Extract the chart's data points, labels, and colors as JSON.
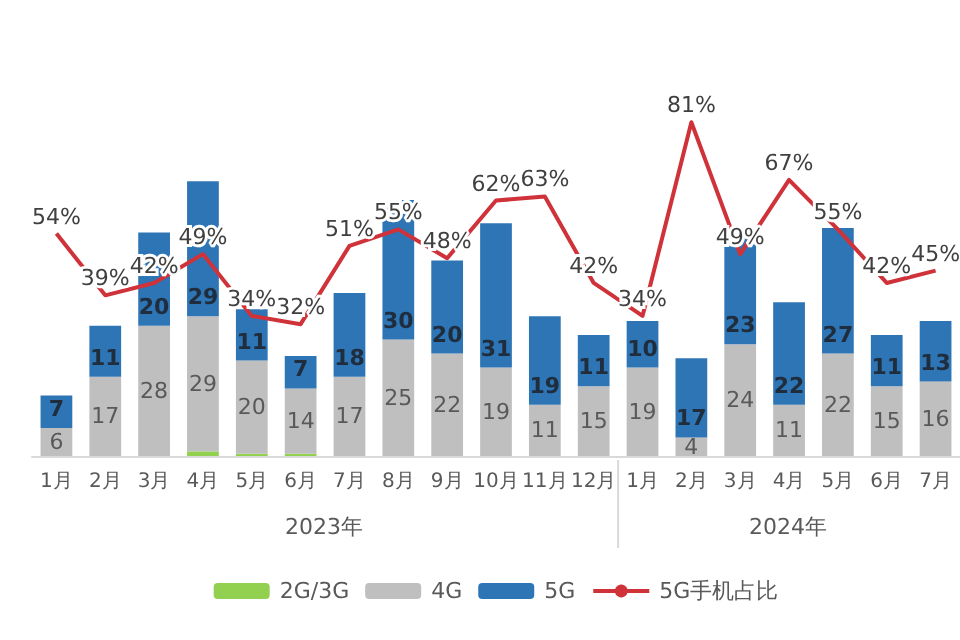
{
  "chart_data": {
    "type": "bar",
    "stacked": true,
    "data_labels": true,
    "legend": "bottom",
    "tick_labels": false,
    "categories": [
      "1月",
      "2月",
      "3月",
      "4月",
      "5月",
      "6月",
      "7月",
      "8月",
      "9月",
      "10月",
      "11月",
      "12月",
      "1月",
      "2月",
      "3月",
      "4月",
      "5月",
      "6月",
      "7月"
    ],
    "series": [
      {
        "name": "2G/3G",
        "color": "#92d050",
        "values": [
          null,
          null,
          null,
          1,
          0.5,
          0.5,
          null,
          null,
          null,
          null,
          null,
          null,
          null,
          null,
          null,
          null,
          null,
          null,
          null
        ],
        "value_labels": [
          null,
          null,
          null,
          null,
          null,
          null,
          null,
          null,
          null,
          null,
          null,
          null,
          null,
          null,
          null,
          null,
          null,
          null,
          null
        ]
      },
      {
        "name": "4G",
        "color": "#bfbfbf",
        "values": [
          6,
          17,
          28,
          29,
          20,
          14,
          17,
          25,
          22,
          19,
          11,
          15,
          19,
          4,
          24,
          11,
          22,
          15,
          16
        ]
      },
      {
        "name": "5G",
        "color": "#2e75b6",
        "values": [
          7,
          11,
          20,
          29,
          11,
          7,
          18,
          30,
          20,
          31,
          19,
          11,
          10,
          17,
          23,
          22,
          27,
          11,
          13
        ]
      },
      {
        "name": "5G手机占比",
        "type": "line",
        "axis": "y2",
        "color": "#d0323a",
        "values": [
          54,
          39,
          42,
          49,
          34,
          32,
          51,
          55,
          48,
          62,
          63,
          42,
          34,
          81,
          49,
          67,
          55,
          42,
          45
        ],
        "value_labels": [
          "54%",
          "39%",
          "42%",
          "49%",
          "34%",
          "32%",
          "51%",
          "55%",
          "48%",
          "62%",
          "63%",
          "42%",
          "34%",
          "81%",
          "49%",
          "67%",
          "55%",
          "42%",
          "45%"
        ]
      }
    ],
    "annotations": [
      "2023年",
      "2024年"
    ]
  }
}
